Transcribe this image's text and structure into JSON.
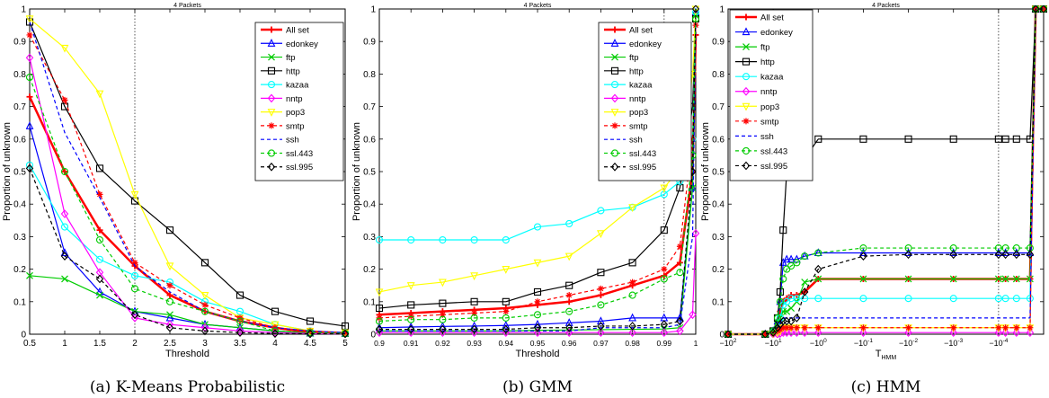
{
  "colors": {
    "All set": "#ff0000",
    "edonkey": "#0000ff",
    "ftp": "#00cc00",
    "http": "#000000",
    "kazaa": "#00ffff",
    "nntp": "#ff00ff",
    "pop3": "#ffff00",
    "smtp": "#ff0000",
    "ssh": "#0000ff",
    "ssl.443": "#00cc00",
    "ssl.995": "#000000"
  },
  "styles": {
    "All set": {
      "marker": "plus",
      "dash": "solid",
      "width": 2.5
    },
    "edonkey": {
      "marker": "triangle",
      "dash": "solid",
      "width": 1.2
    },
    "ftp": {
      "marker": "x",
      "dash": "solid",
      "width": 1.2
    },
    "http": {
      "marker": "square",
      "dash": "solid",
      "width": 1.2
    },
    "kazaa": {
      "marker": "circle",
      "dash": "solid",
      "width": 1.2
    },
    "nntp": {
      "marker": "diamond",
      "dash": "solid",
      "width": 1.2
    },
    "pop3": {
      "marker": "triangle-down",
      "dash": "solid",
      "width": 1.2
    },
    "smtp": {
      "marker": "asterisk",
      "dash": "dashed",
      "width": 1.2
    },
    "ssh": {
      "marker": "none",
      "dash": "dashed",
      "width": 1.2
    },
    "ssl.443": {
      "marker": "circle",
      "dash": "dashed",
      "width": 1.2
    },
    "ssl.995": {
      "marker": "diamond",
      "dash": "dashed",
      "width": 1.2
    }
  },
  "chart_data": [
    {
      "type": "line",
      "title": "4 Packets",
      "caption": "(a) K-Means Probabilistic",
      "xlabel": "Threshold",
      "ylabel": "Proportion of unknown",
      "xlim": [
        0.5,
        5
      ],
      "ylim": [
        0,
        1
      ],
      "xticks": [
        0.5,
        1,
        1.5,
        2,
        2.5,
        3,
        3.5,
        4,
        4.5,
        5
      ],
      "xticklabels": [
        "0.5",
        "1",
        "1.5",
        "2",
        "2.5",
        "3",
        "3.5",
        "4",
        "4.5",
        "5"
      ],
      "yticks": [
        0,
        0.1,
        0.2,
        0.3,
        0.4,
        0.5,
        0.6,
        0.7,
        0.8,
        0.9,
        1
      ],
      "yticklabels": [
        "0",
        "0.1",
        "0.2",
        "0.3",
        "0.4",
        "0.5",
        "0.6",
        "0.7",
        "0.8",
        "0.9",
        "1"
      ],
      "vline": 2,
      "legend": "top-right",
      "x": [
        0.5,
        1,
        1.5,
        2,
        2.5,
        3,
        3.5,
        4,
        4.5,
        5
      ],
      "series": [
        {
          "name": "All set",
          "values": [
            0.73,
            0.5,
            0.32,
            0.21,
            0.12,
            0.07,
            0.04,
            0.02,
            0.005,
            0.003
          ]
        },
        {
          "name": "edonkey",
          "values": [
            0.64,
            0.25,
            0.13,
            0.07,
            0.05,
            0.03,
            0.02,
            0.01,
            0.003,
            0.002
          ]
        },
        {
          "name": "ftp",
          "values": [
            0.18,
            0.17,
            0.12,
            0.07,
            0.06,
            0.03,
            0.02,
            0.01,
            0.003,
            0.002
          ]
        },
        {
          "name": "http",
          "values": [
            0.96,
            0.7,
            0.51,
            0.41,
            0.32,
            0.22,
            0.12,
            0.07,
            0.04,
            0.025
          ]
        },
        {
          "name": "kazaa",
          "values": [
            0.52,
            0.33,
            0.23,
            0.18,
            0.16,
            0.1,
            0.07,
            0.03,
            0.01,
            0.005
          ]
        },
        {
          "name": "nntp",
          "values": [
            0.85,
            0.37,
            0.19,
            0.05,
            0.03,
            0.02,
            0.01,
            0.005,
            0.002,
            0.001
          ]
        },
        {
          "name": "pop3",
          "values": [
            0.97,
            0.88,
            0.74,
            0.43,
            0.21,
            0.12,
            0.05,
            0.03,
            0.01,
            0.005
          ]
        },
        {
          "name": "smtp",
          "values": [
            0.92,
            0.72,
            0.43,
            0.22,
            0.15,
            0.09,
            0.05,
            0.02,
            0.01,
            0.005
          ]
        },
        {
          "name": "ssh",
          "values": [
            0.96,
            0.62,
            0.42,
            0.21,
            0.13,
            0.07,
            0.04,
            0.02,
            0.01,
            0.005
          ]
        },
        {
          "name": "ssl.443",
          "values": [
            0.79,
            0.5,
            0.29,
            0.14,
            0.1,
            0.07,
            0.04,
            0.01,
            0.005,
            0.002
          ]
        },
        {
          "name": "ssl.995",
          "values": [
            0.51,
            0.24,
            0.17,
            0.06,
            0.02,
            0.01,
            0.005,
            0.002,
            0.001,
            0.001
          ]
        }
      ]
    },
    {
      "type": "line",
      "title": "4 Packets",
      "caption": "(b) GMM",
      "xlabel": "Threshold",
      "ylabel": "Proportion of unknown",
      "xlim": [
        0.9,
        1
      ],
      "ylim": [
        0,
        1
      ],
      "xticks": [
        0.9,
        0.91,
        0.92,
        0.93,
        0.94,
        0.95,
        0.96,
        0.97,
        0.98,
        0.99,
        1
      ],
      "xticklabels": [
        "0.9",
        "0.91",
        "0.92",
        "0.93",
        "0.94",
        "0.95",
        "0.96",
        "0.97",
        "0.98",
        "0.99",
        "1"
      ],
      "yticks": [
        0,
        0.1,
        0.2,
        0.3,
        0.4,
        0.5,
        0.6,
        0.7,
        0.8,
        0.9,
        1
      ],
      "yticklabels": [
        "0",
        "0.1",
        "0.2",
        "0.3",
        "0.4",
        "0.5",
        "0.6",
        "0.7",
        "0.8",
        "0.9",
        "1"
      ],
      "vline": 0.99,
      "legend": "top-right",
      "x": [
        0.9,
        0.91,
        0.92,
        0.93,
        0.94,
        0.95,
        0.96,
        0.97,
        0.98,
        0.99,
        0.995,
        0.999,
        1
      ],
      "series": [
        {
          "name": "All set",
          "values": [
            0.06,
            0.065,
            0.07,
            0.075,
            0.08,
            0.09,
            0.1,
            0.12,
            0.15,
            0.18,
            0.22,
            0.5,
            0.92
          ]
        },
        {
          "name": "edonkey",
          "values": [
            0.02,
            0.022,
            0.024,
            0.025,
            0.027,
            0.03,
            0.035,
            0.04,
            0.05,
            0.05,
            0.05,
            0.45,
            0.99
          ]
        },
        {
          "name": "ftp",
          "values": [
            0.01,
            0.01,
            0.01,
            0.01,
            0.01,
            0.012,
            0.013,
            0.014,
            0.015,
            0.016,
            0.02,
            0.45,
            0.98
          ]
        },
        {
          "name": "http",
          "values": [
            0.08,
            0.09,
            0.095,
            0.1,
            0.1,
            0.13,
            0.15,
            0.19,
            0.22,
            0.32,
            0.45,
            0.7,
            0.97
          ]
        },
        {
          "name": "kazaa",
          "values": [
            0.29,
            0.29,
            0.29,
            0.29,
            0.29,
            0.33,
            0.34,
            0.38,
            0.39,
            0.43,
            0.47,
            0.6,
            0.99
          ]
        },
        {
          "name": "nntp",
          "values": [
            0.005,
            0.005,
            0.005,
            0.005,
            0.005,
            0.005,
            0.005,
            0.005,
            0.005,
            0.005,
            0.01,
            0.06,
            0.31
          ]
        },
        {
          "name": "pop3",
          "values": [
            0.13,
            0.15,
            0.16,
            0.18,
            0.2,
            0.22,
            0.24,
            0.31,
            0.39,
            0.45,
            0.51,
            0.8,
            1
          ]
        },
        {
          "name": "smtp",
          "values": [
            0.05,
            0.055,
            0.06,
            0.065,
            0.07,
            0.1,
            0.12,
            0.14,
            0.16,
            0.2,
            0.27,
            0.6,
            0.95
          ]
        },
        {
          "name": "ssh",
          "values": [
            0.01,
            0.01,
            0.01,
            0.01,
            0.01,
            0.01,
            0.01,
            0.02,
            0.02,
            0.02,
            0.03,
            0.3,
            0.95
          ]
        },
        {
          "name": "ssl.443",
          "values": [
            0.04,
            0.045,
            0.045,
            0.05,
            0.05,
            0.06,
            0.07,
            0.09,
            0.12,
            0.17,
            0.19,
            0.55,
            0.97
          ]
        },
        {
          "name": "ssl.995",
          "values": [
            0.015,
            0.015,
            0.015,
            0.015,
            0.015,
            0.02,
            0.02,
            0.025,
            0.025,
            0.03,
            0.04,
            0.5,
            1
          ]
        }
      ]
    },
    {
      "type": "line",
      "title": "4 Packets",
      "caption": "(c) HMM",
      "xlabel": "THMM",
      "ylabel": "Proportion of unknown",
      "xscale": "symlog",
      "xlim": [
        -100,
        -1e-05
      ],
      "ylim": [
        0,
        1
      ],
      "xticks": [
        -100,
        -10,
        -1,
        -0.1,
        -0.01,
        -0.001,
        -0.0001
      ],
      "xticklabels": [
        "−10^2",
        "−10^1",
        "−10^0",
        "−10^-1",
        "−10^-2",
        "−10^-3",
        "−10^-4"
      ],
      "yticks": [
        0,
        0.1,
        0.2,
        0.3,
        0.4,
        0.5,
        0.6,
        0.7,
        0.8,
        0.9,
        1
      ],
      "yticklabels": [
        "0",
        "0.1",
        "0.2",
        "0.3",
        "0.4",
        "0.5",
        "0.6",
        "0.7",
        "0.8",
        "0.9",
        "1"
      ],
      "vline": -0.0001,
      "legend": "top-left",
      "x": [
        -100,
        -15,
        -10,
        -8,
        -7,
        -6,
        -5,
        -4,
        -3,
        -2,
        -1,
        -0.1,
        -0.01,
        -0.001,
        -0.0001,
        -7e-05,
        -4e-05,
        -2e-05,
        -1.5e-05,
        -1e-05
      ],
      "series": [
        {
          "name": "All set",
          "values": [
            0,
            0,
            0.005,
            0.03,
            0.07,
            0.1,
            0.11,
            0.12,
            0.12,
            0.13,
            0.17,
            0.17,
            0.17,
            0.17,
            0.17,
            0.17,
            0.17,
            0.17,
            1,
            1
          ]
        },
        {
          "name": "edonkey",
          "values": [
            0,
            0,
            0.01,
            0.04,
            0.1,
            0.22,
            0.23,
            0.23,
            0.23,
            0.24,
            0.25,
            0.25,
            0.25,
            0.25,
            0.25,
            0.25,
            0.25,
            0.25,
            1,
            1
          ]
        },
        {
          "name": "ftp",
          "values": [
            0,
            0,
            0.01,
            0.03,
            0.05,
            0.07,
            0.07,
            0.08,
            0.1,
            0.16,
            0.17,
            0.17,
            0.17,
            0.17,
            0.17,
            0.17,
            0.17,
            0.17,
            1,
            1
          ]
        },
        {
          "name": "http",
          "values": [
            0,
            0,
            0.01,
            0.05,
            0.13,
            0.32,
            0.5,
            0.54,
            0.54,
            0.54,
            0.6,
            0.6,
            0.6,
            0.6,
            0.6,
            0.6,
            0.6,
            0.6,
            1,
            1
          ]
        },
        {
          "name": "kazaa",
          "values": [
            0,
            0,
            0.005,
            0.02,
            0.05,
            0.09,
            0.1,
            0.11,
            0.11,
            0.11,
            0.11,
            0.11,
            0.11,
            0.11,
            0.11,
            0.11,
            0.11,
            0.11,
            1,
            1
          ]
        },
        {
          "name": "nntp",
          "values": [
            0,
            0,
            0,
            0,
            0.002,
            0.005,
            0.005,
            0.005,
            0.005,
            0.005,
            0.005,
            0.005,
            0.005,
            0.005,
            0.005,
            0.005,
            0.005,
            0.005,
            1,
            1
          ]
        },
        {
          "name": "pop3",
          "values": [
            0,
            0,
            0.002,
            0.005,
            0.01,
            0.02,
            0.02,
            0.02,
            0.02,
            0.02,
            0.02,
            0.02,
            0.02,
            0.02,
            0.02,
            0.02,
            0.02,
            0.02,
            1,
            1
          ]
        },
        {
          "name": "smtp",
          "values": [
            0,
            0,
            0.003,
            0.01,
            0.015,
            0.02,
            0.02,
            0.02,
            0.02,
            0.02,
            0.02,
            0.02,
            0.02,
            0.02,
            0.02,
            0.02,
            0.02,
            0.02,
            1,
            1
          ]
        },
        {
          "name": "ssh",
          "values": [
            0,
            0,
            0.005,
            0.02,
            0.035,
            0.05,
            0.05,
            0.05,
            0.05,
            0.05,
            0.05,
            0.05,
            0.05,
            0.05,
            0.05,
            0.05,
            0.05,
            0.05,
            1,
            1
          ]
        },
        {
          "name": "ssl.443",
          "values": [
            0,
            0,
            0.01,
            0.05,
            0.1,
            0.17,
            0.2,
            0.21,
            0.22,
            0.24,
            0.25,
            0.265,
            0.265,
            0.265,
            0.265,
            0.265,
            0.265,
            0.265,
            1,
            1
          ]
        },
        {
          "name": "ssl.995",
          "values": [
            0,
            0,
            0.005,
            0.02,
            0.03,
            0.04,
            0.04,
            0.04,
            0.05,
            0.13,
            0.2,
            0.24,
            0.245,
            0.245,
            0.245,
            0.245,
            0.245,
            0.245,
            1,
            1
          ]
        }
      ]
    }
  ]
}
